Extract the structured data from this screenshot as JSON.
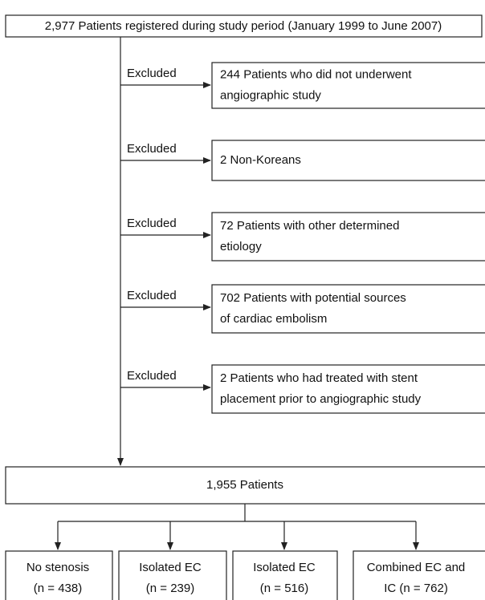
{
  "header": {
    "text": "2,977 Patients registered during study period (January 1999 to June 2007)"
  },
  "exclusions": [
    {
      "label": "Excluded",
      "lines": [
        "244 Patients who did not underwent",
        "angiographic study"
      ]
    },
    {
      "label": "Excluded",
      "lines": [
        "2 Non-Koreans"
      ]
    },
    {
      "label": "Excluded",
      "lines": [
        "72 Patients with other determined",
        "etiology"
      ]
    },
    {
      "label": "Excluded",
      "lines": [
        "702 Patients with potential sources",
        "of cardiac embolism"
      ]
    },
    {
      "label": "Excluded",
      "lines": [
        "2 Patients who had treated with stent",
        "placement prior to angiographic study"
      ]
    }
  ],
  "merge": {
    "text": "1,955 Patients"
  },
  "groups": [
    {
      "lines": [
        "No stenosis",
        "(n = 438)"
      ]
    },
    {
      "lines": [
        "Isolated EC",
        "(n = 239)"
      ]
    },
    {
      "lines": [
        "Isolated EC",
        "(n = 516)"
      ]
    },
    {
      "lines": [
        "Combined EC and",
        "IC (n = 762)"
      ]
    }
  ]
}
